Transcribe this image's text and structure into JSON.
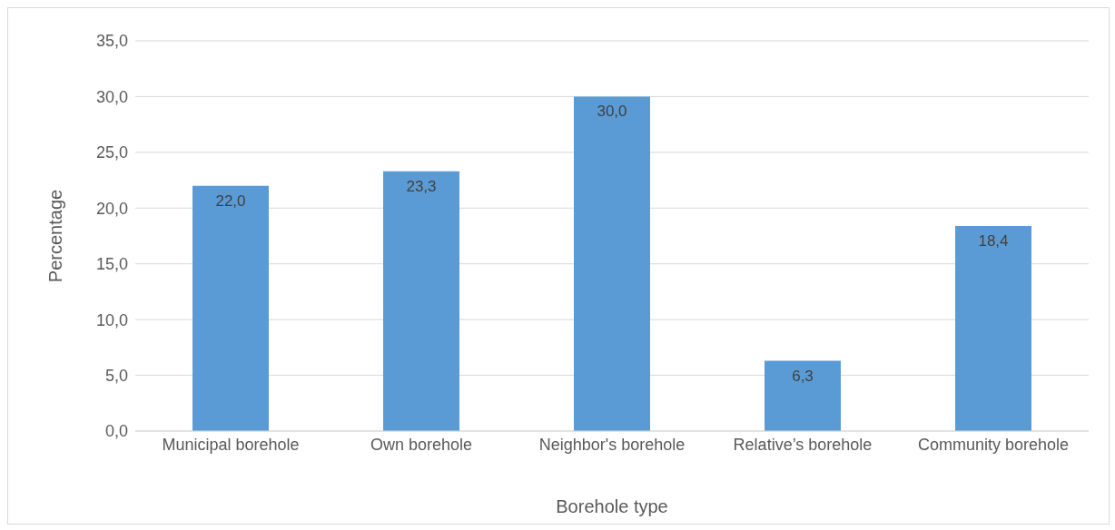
{
  "chart_data": {
    "type": "bar",
    "xlabel": "Borehole type",
    "ylabel": "Percentage",
    "categories": [
      "Municipal borehole",
      "Own borehole",
      "Neighbor's borehole",
      "Relative’s borehole",
      "Community borehole"
    ],
    "values": [
      22.0,
      23.3,
      30.0,
      6.3,
      18.4
    ],
    "value_labels": [
      "22,0",
      "23,3",
      "30,0",
      "6,3",
      "18,4"
    ],
    "color": "#5b9bd5",
    "ylim": [
      0,
      35
    ],
    "yticks": [
      {
        "value": 0,
        "label": "0,0"
      },
      {
        "value": 5,
        "label": "5,0"
      },
      {
        "value": 10,
        "label": "10,0"
      },
      {
        "value": 15,
        "label": "15,0"
      },
      {
        "value": 20,
        "label": "20,0"
      },
      {
        "value": 25,
        "label": "25,0"
      },
      {
        "value": 30,
        "label": "30,0"
      },
      {
        "value": 35,
        "label": "35,0"
      }
    ],
    "grid": "y",
    "legend": false
  }
}
